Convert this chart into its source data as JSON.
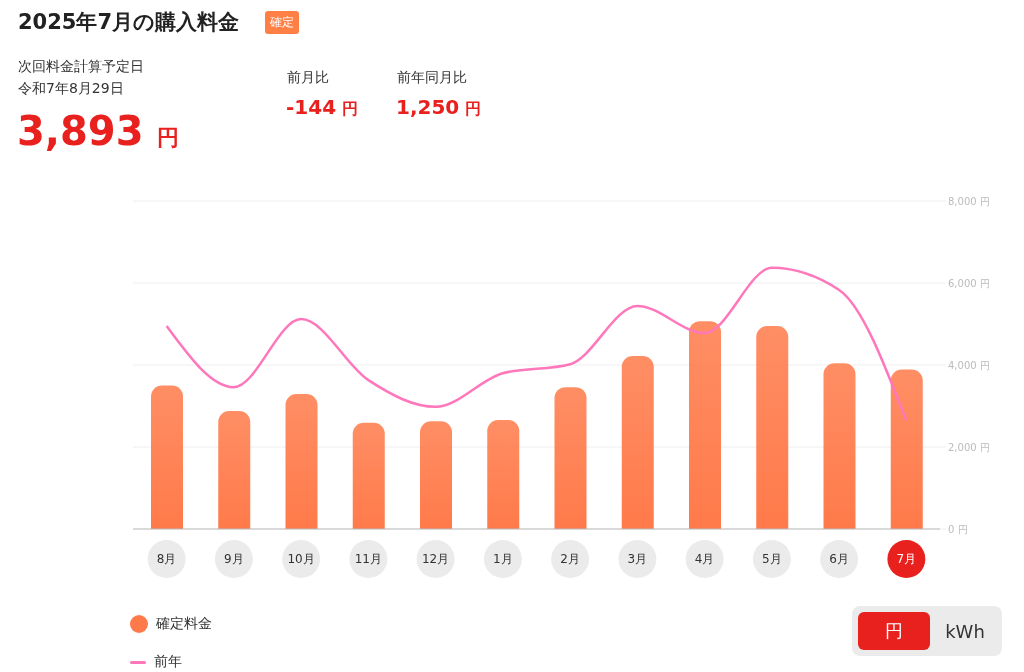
{
  "chart_data": {
    "type": "bar",
    "title": "2025年7月の購入料金",
    "annotations": [
      "確定",
      "次回料金計算予定日",
      "令和7年8月29日",
      "3,893 円",
      "前月比",
      "-144 円",
      "前年同月比",
      "1,250 円",
      "円",
      "kWh"
    ],
    "categories": [
      "8月",
      "9月",
      "10月",
      "11月",
      "12月",
      "1月",
      "2月",
      "3月",
      "4月",
      "5月",
      "6月",
      "7月"
    ],
    "series": [
      {
        "name": "確定料金",
        "color": "#ff7a4a",
        "values": [
          3500,
          2880,
          3290,
          2590,
          2630,
          2660,
          3460,
          4220,
          5070,
          4950,
          4040,
          3890
        ]
      },
      {
        "name": "前年",
        "type": "line",
        "color": "#ff77bb",
        "values": [
          4950,
          3460,
          5120,
          3630,
          2980,
          3800,
          4020,
          5440,
          4780,
          6370,
          5830,
          2640
        ]
      }
    ],
    "ylim": [
      0,
      8000
    ],
    "yticks": [
      {
        "value": 0,
        "label": "0 円"
      },
      {
        "value": 2000,
        "label": "2,000 円"
      },
      {
        "value": 4000,
        "label": "4,000 円"
      },
      {
        "value": 6000,
        "label": "6,000 円"
      },
      {
        "value": 8000,
        "label": "8,000 円"
      }
    ],
    "grid": "y",
    "legend": "bottom left",
    "marker": "none",
    "line_style": "solid"
  }
}
